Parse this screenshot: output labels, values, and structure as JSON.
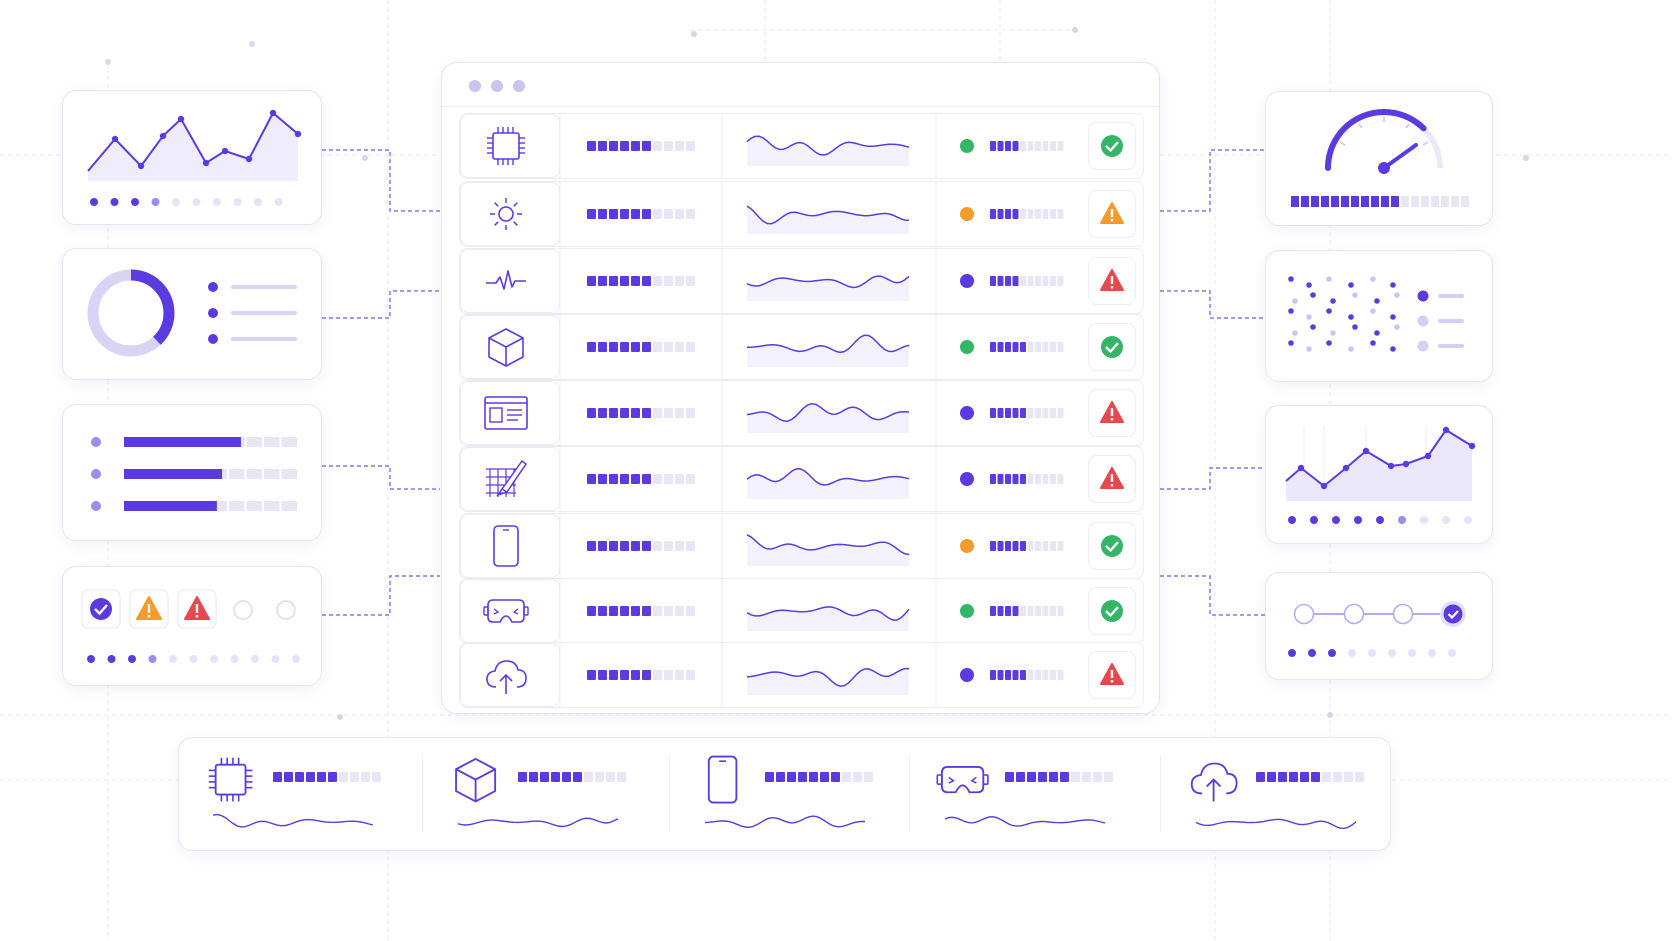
{
  "theme": {
    "accent": "#5b3be0",
    "accent_light": "#c9c0f4",
    "track": "#e8e6f4",
    "ok": "#35b566",
    "warn": "#f59a2c",
    "alert": "#e5484d"
  },
  "window": {
    "controls": [
      "dot",
      "dot",
      "dot"
    ]
  },
  "rows": [
    {
      "icon": "cpu-icon",
      "progress": 0.6,
      "dot": "ok",
      "mini_progress": 0.35,
      "status": "check-icon"
    },
    {
      "icon": "sun-icon",
      "progress": 0.6,
      "dot": "warn",
      "mini_progress": 0.35,
      "status": "warning-icon"
    },
    {
      "icon": "pulse-icon",
      "progress": 0.6,
      "dot": "accent",
      "mini_progress": 0.35,
      "status": "alert-icon"
    },
    {
      "icon": "cube-icon",
      "progress": 0.55,
      "dot": "ok",
      "mini_progress": 0.45,
      "status": "check-icon"
    },
    {
      "icon": "browser-window-icon",
      "progress": 0.6,
      "dot": "accent",
      "mini_progress": 0.5,
      "status": "alert-icon"
    },
    {
      "icon": "design-grid-brush-icon",
      "progress": 0.6,
      "dot": "accent",
      "mini_progress": 0.45,
      "status": "alert-icon"
    },
    {
      "icon": "smartphone-icon",
      "progress": 0.6,
      "dot": "warn",
      "mini_progress": 0.5,
      "status": "check-icon"
    },
    {
      "icon": "vr-headset-icon",
      "progress": 0.6,
      "dot": "ok",
      "mini_progress": 0.4,
      "status": "check-icon"
    },
    {
      "icon": "cloud-upload-icon",
      "progress": 0.55,
      "dot": "accent",
      "mini_progress": 0.5,
      "status": "alert-icon"
    }
  ],
  "left_panels": {
    "line_chart": {
      "pager_active": 4,
      "pager_total": 10
    },
    "donut": {
      "fraction": 0.38,
      "legend_items": 3
    },
    "bars": [
      0.68,
      0.57,
      0.54
    ],
    "status_icons": [
      "check-icon",
      "warning-icon",
      "alert-icon",
      "empty-circle-icon",
      "empty-circle-icon"
    ],
    "pager_active": 4,
    "pager_total": 11
  },
  "right_panels": {
    "gauge": {
      "level": 0.75,
      "progress": 0.6
    },
    "scatter_legend_items": 3,
    "area_chart": {
      "pager_active": 6,
      "pager_total": 9
    },
    "stepper": {
      "steps": 4,
      "current": 4,
      "pager_active": 3,
      "pager_total": 9
    }
  },
  "bottom_strip": [
    {
      "icon": "cpu-icon",
      "progress": 0.6
    },
    {
      "icon": "cube-icon",
      "progress": 0.55
    },
    {
      "icon": "smartphone-icon",
      "progress": 0.65
    },
    {
      "icon": "vr-headset-icon",
      "progress": 0.6
    },
    {
      "icon": "cloud-upload-icon",
      "progress": 0.6
    }
  ]
}
